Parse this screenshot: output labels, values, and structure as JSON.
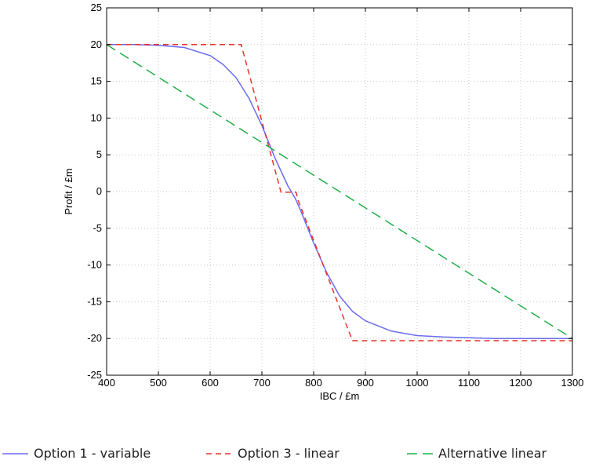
{
  "chart_data": {
    "type": "line",
    "title": "",
    "xlabel": "IBC / £m",
    "ylabel": "Profit / £m",
    "xlim": [
      400,
      1300
    ],
    "ylim": [
      -25,
      25
    ],
    "x_ticks": [
      400,
      500,
      600,
      700,
      800,
      900,
      1000,
      1100,
      1200,
      1300
    ],
    "y_ticks": [
      -25,
      -20,
      -15,
      -10,
      -5,
      0,
      5,
      10,
      15,
      20,
      25
    ],
    "grid": true,
    "legend_position": "bottom",
    "series": [
      {
        "name": "Option 1 - variable",
        "color": "#6b6bf0",
        "style": "solid",
        "x": [
          400,
          450,
          500,
          550,
          600,
          625,
          650,
          675,
          700,
          725,
          750,
          765,
          775,
          800,
          825,
          850,
          875,
          900,
          950,
          1000,
          1050,
          1100,
          1150,
          1200,
          1250,
          1300
        ],
        "y": [
          20,
          20,
          19.9,
          19.6,
          18.5,
          17.3,
          15.5,
          12.7,
          9,
          4.6,
          0.8,
          -1,
          -2.6,
          -7,
          -11,
          -14.2,
          -16.3,
          -17.6,
          -19,
          -19.6,
          -19.8,
          -19.9,
          -20,
          -20,
          -20,
          -20
        ]
      },
      {
        "name": "Option 3 - linear",
        "color": "#e8322b",
        "style": "short-dash",
        "x": [
          400,
          660,
          737,
          741,
          766,
          770,
          875,
          1300
        ],
        "y": [
          20,
          20,
          -0.1,
          -0.1,
          -0.1,
          -1.2,
          -20.3,
          -20.3
        ]
      },
      {
        "name": "Alternative linear",
        "color": "#22b04a",
        "style": "long-dash",
        "x": [
          400,
          1300
        ],
        "y": [
          20,
          -20
        ]
      }
    ]
  }
}
